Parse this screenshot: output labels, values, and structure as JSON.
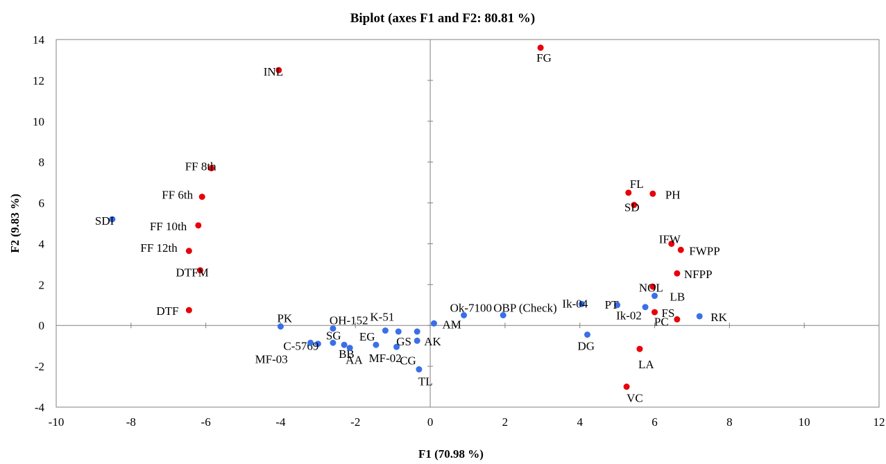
{
  "chart_data": {
    "type": "scatter",
    "title": "Biplot (axes F1 and F2: 80.81 %)",
    "xlabel": "F1 (70.98 %)",
    "ylabel": "F2 (9.83 %)",
    "xlim": [
      -10,
      12
    ],
    "ylim": [
      -4,
      14
    ],
    "xticks": [
      "-10",
      "-8",
      "-6",
      "-4",
      "-2",
      "0",
      "2",
      "4",
      "6",
      "8",
      "10",
      "12"
    ],
    "yticks": [
      "-4",
      "-2",
      "0",
      "2",
      "4",
      "6",
      "8",
      "10",
      "12",
      "14"
    ],
    "grid": false,
    "legend": "none",
    "colors": {
      "variables": "#e8000b",
      "observations": "#3a6fe8"
    },
    "series": [
      {
        "points": [
          {
            "label": "FG",
            "x": 2.95,
            "y": 13.6
          },
          {
            "label": "INL",
            "x": -4.05,
            "y": 12.5
          },
          {
            "label": "FF 8th",
            "x": -5.85,
            "y": 7.7
          },
          {
            "label": "FF 6th",
            "x": -6.1,
            "y": 6.3
          },
          {
            "label": "FF 10th",
            "x": -6.2,
            "y": 4.9
          },
          {
            "label": "FF 12th",
            "x": -6.45,
            "y": 3.65
          },
          {
            "label": "DTFM",
            "x": -6.15,
            "y": 2.7
          },
          {
            "label": "DTF",
            "x": -6.45,
            "y": 0.75
          },
          {
            "label": "FL",
            "x": 5.3,
            "y": 6.5
          },
          {
            "label": "PH",
            "x": 5.95,
            "y": 6.45
          },
          {
            "label": "SD",
            "x": 5.45,
            "y": 5.9
          },
          {
            "label": "IFW",
            "x": 6.45,
            "y": 4.0
          },
          {
            "label": "FWPP",
            "x": 6.7,
            "y": 3.7
          },
          {
            "label": "NFPP",
            "x": 6.6,
            "y": 2.55
          },
          {
            "label": "NOL",
            "x": 5.95,
            "y": 1.9
          },
          {
            "label": "FS",
            "x": 6.0,
            "y": 0.65
          },
          {
            "label": "PC",
            "x": 6.6,
            "y": 0.3
          },
          {
            "label": "LA",
            "x": 5.6,
            "y": -1.15
          },
          {
            "label": "VC",
            "x": 5.25,
            "y": -3.0
          }
        ]
      },
      {
        "points": [
          {
            "label": "SDI",
            "x": -8.5,
            "y": 5.2
          },
          {
            "label": "PK",
            "x": -4.0,
            "y": -0.05
          },
          {
            "label": "OH-152",
            "x": -2.6,
            "y": -0.15
          },
          {
            "label": "C-5769",
            "x": -3.0,
            "y": -0.9
          },
          {
            "label": "SG",
            "x": -2.6,
            "y": -0.85
          },
          {
            "label": "BB",
            "x": -2.3,
            "y": -0.95
          },
          {
            "label": "AA",
            "x": -2.15,
            "y": -1.1
          },
          {
            "label": "MF-03",
            "x": -3.2,
            "y": -0.85
          },
          {
            "label": "EG",
            "x": -1.45,
            "y": -0.95
          },
          {
            "label": "K-51",
            "x": -1.2,
            "y": -0.25
          },
          {
            "label": "MF-02",
            "x": -0.9,
            "y": -1.05
          },
          {
            "label": "GS",
            "x": -0.85,
            "y": -0.3
          },
          {
            "label": "CG",
            "x": -0.35,
            "y": -0.75
          },
          {
            "label": "AK",
            "x": -0.35,
            "y": -0.3
          },
          {
            "label": "TL",
            "x": -0.3,
            "y": -2.15
          },
          {
            "label": "AM",
            "x": 0.1,
            "y": 0.1
          },
          {
            "label": "Ok-7100",
            "x": 0.9,
            "y": 0.5
          },
          {
            "label": "OBP (Check)",
            "x": 1.95,
            "y": 0.5
          },
          {
            "label": "Ik-04",
            "x": 4.05,
            "y": 1.05
          },
          {
            "label": "DG",
            "x": 4.2,
            "y": -0.45
          },
          {
            "label": "PT",
            "x": 5.0,
            "y": 1.0
          },
          {
            "label": "Ik-02",
            "x": 5.75,
            "y": 0.9
          },
          {
            "label": "LB",
            "x": 6.0,
            "y": 1.45
          },
          {
            "label": "RK",
            "x": 7.2,
            "y": 0.45
          }
        ]
      }
    ]
  }
}
